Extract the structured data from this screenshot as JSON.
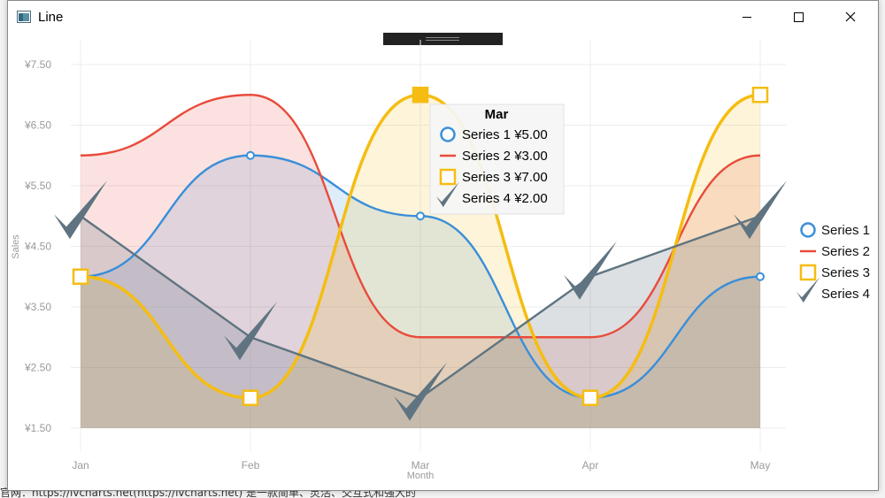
{
  "window": {
    "title": "Line"
  },
  "background": {
    "bottom_text": "官网：https://lvcharts.net(https://lvcharts.net) 是一款简单、灵活、交互式和强大的"
  },
  "chart_data": {
    "type": "line",
    "categories": [
      "Jan",
      "Feb",
      "Mar",
      "Apr",
      "May"
    ],
    "xlabel": "Month",
    "ylabel": "Sales",
    "ylim": [
      1.5,
      7.5
    ],
    "y_ticks": [
      "¥1.50",
      "¥2.50",
      "¥3.50",
      "¥4.50",
      "¥5.50",
      "¥6.50",
      "¥7.50"
    ],
    "y_tick_values": [
      1.5,
      2.5,
      3.5,
      4.5,
      5.5,
      6.5,
      7.5
    ],
    "area_fill": true,
    "smooth": true,
    "legend_position": "right",
    "series": [
      {
        "name": "Series 1",
        "values": [
          4,
          6,
          5,
          2,
          4
        ],
        "color": "#3a8fd9",
        "marker": "circle",
        "smooth": true
      },
      {
        "name": "Series 2",
        "values": [
          6,
          7,
          3,
          3,
          6
        ],
        "color": "#e84b3c",
        "marker": "none",
        "smooth": true
      },
      {
        "name": "Series 3",
        "values": [
          4,
          2,
          7,
          2,
          7
        ],
        "color": "#f5bd12",
        "marker": "square",
        "smooth": true
      },
      {
        "name": "Series 4",
        "values": [
          5,
          3,
          2,
          4,
          5
        ],
        "color": "#5f7480",
        "marker": "check",
        "smooth": false
      }
    ],
    "tooltip": {
      "title": "Mar",
      "items": [
        {
          "name": "Series 1",
          "value": "¥5.00"
        },
        {
          "name": "Series 2",
          "value": "¥3.00"
        },
        {
          "name": "Series 3",
          "value": "¥7.00"
        },
        {
          "name": "Series 4",
          "value": "¥2.00"
        }
      ]
    }
  }
}
